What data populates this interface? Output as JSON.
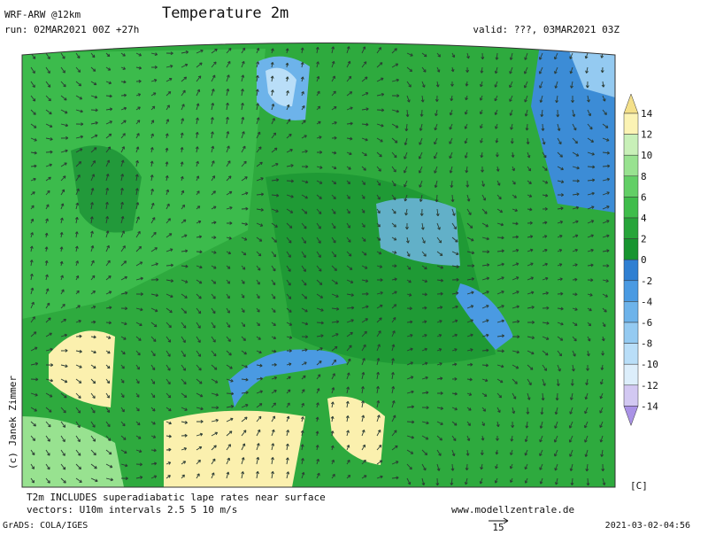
{
  "header": {
    "model": "WRF-ARW @12km",
    "title": "Temperature 2m",
    "run": "run: 02MAR2021 00Z +27h",
    "valid": "valid: ???, 03MAR2021 03Z"
  },
  "colorbar": {
    "labels": [
      14,
      12,
      10,
      8,
      6,
      4,
      2,
      0,
      -2,
      -4,
      -6,
      -8,
      -10,
      -12,
      -14
    ],
    "colors": [
      "#f4e08a",
      "#fbf3b4",
      "#c8f0b8",
      "#98e290",
      "#62cf66",
      "#3fbd4b",
      "#27a53a",
      "#179530",
      "#2f7fd2",
      "#4a9ae2",
      "#6db3ea",
      "#94caf1",
      "#b9def8",
      "#dceefb",
      "#d2c8f2",
      "#a992e6"
    ],
    "unit": "[C]"
  },
  "credit": "(c) Janek Zimmer",
  "footer": {
    "note": "T2m INCLUDES superadiabatic lape rates near surface",
    "vectors": "vectors: U10m intervals 2.5 5 10 m/s",
    "site": "www.modellzentrale.de",
    "software": "GrADS: COLA/IGES",
    "reference_vector": "15",
    "timestamp": "2021-03-02-04:56"
  }
}
